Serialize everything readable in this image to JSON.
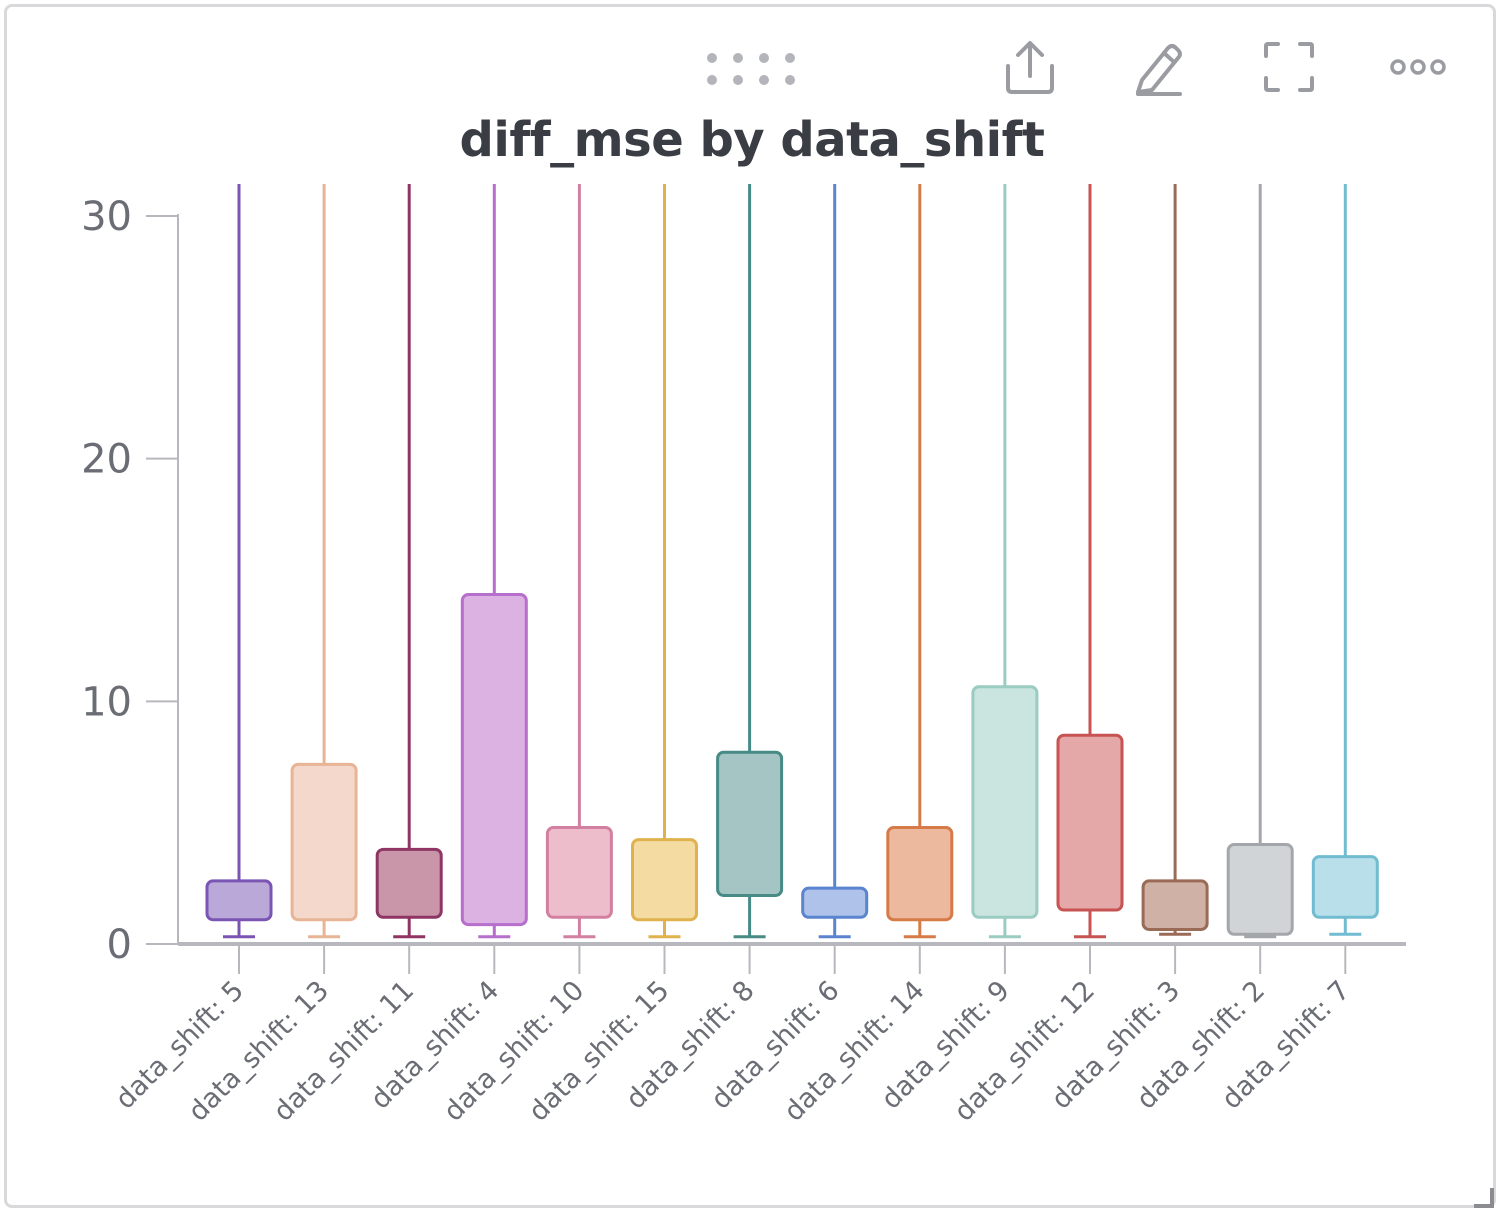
{
  "panel": {
    "title": "diff_mse by data_shift",
    "toolbar": {
      "drag_icon": "drag-handle-icon",
      "share_icon": "share-icon",
      "edit_icon": "edit-pencil-icon",
      "fullscreen_icon": "fullscreen-icon",
      "more_icon": "more-options-icon"
    }
  },
  "chart_data": {
    "type": "box",
    "title": "diff_mse by data_shift",
    "xlabel": "",
    "ylabel": "",
    "ylim": [
      0,
      30
    ],
    "yticks": [
      0,
      10,
      20,
      30
    ],
    "grid": false,
    "categories": [
      "data_shift: 5",
      "data_shift: 13",
      "data_shift: 11",
      "data_shift: 4",
      "data_shift: 10",
      "data_shift: 15",
      "data_shift: 8",
      "data_shift: 6",
      "data_shift: 14",
      "data_shift: 9",
      "data_shift: 12",
      "data_shift: 3",
      "data_shift: 2",
      "data_shift: 7"
    ],
    "boxes": [
      {
        "category": "data_shift: 5",
        "min": 0.3,
        "q1": 1.0,
        "q3": 2.6,
        "max_above_range": true,
        "color": "#7b55b4",
        "fill": "#b9a8d8"
      },
      {
        "category": "data_shift: 13",
        "min": 0.3,
        "q1": 1.0,
        "q3": 7.4,
        "max_above_range": true,
        "color": "#e8b496",
        "fill": "#f4d8cb"
      },
      {
        "category": "data_shift: 11",
        "min": 0.3,
        "q1": 1.1,
        "q3": 3.9,
        "max_above_range": true,
        "color": "#8f3563",
        "fill": "#c995a9"
      },
      {
        "category": "data_shift: 4",
        "min": 0.3,
        "q1": 0.8,
        "q3": 14.4,
        "max_above_range": true,
        "color": "#b66fcc",
        "fill": "#dbb2e2"
      },
      {
        "category": "data_shift: 10",
        "min": 0.3,
        "q1": 1.1,
        "q3": 4.8,
        "max_above_range": true,
        "color": "#d27fa0",
        "fill": "#eebdcc"
      },
      {
        "category": "data_shift: 15",
        "min": 0.3,
        "q1": 1.0,
        "q3": 4.3,
        "max_above_range": true,
        "color": "#e0b24d",
        "fill": "#f3dba2"
      },
      {
        "category": "data_shift: 8",
        "min": 0.3,
        "q1": 2.0,
        "q3": 7.9,
        "max_above_range": true,
        "color": "#478a86",
        "fill": "#a4c5c3"
      },
      {
        "category": "data_shift: 6",
        "min": 0.3,
        "q1": 1.1,
        "q3": 2.3,
        "max_above_range": true,
        "color": "#5b84cf",
        "fill": "#aec2ea"
      },
      {
        "category": "data_shift: 14",
        "min": 0.3,
        "q1": 1.0,
        "q3": 4.8,
        "max_above_range": true,
        "color": "#d67a47",
        "fill": "#ecb99e"
      },
      {
        "category": "data_shift: 9",
        "min": 0.3,
        "q1": 1.1,
        "q3": 10.6,
        "max_above_range": true,
        "color": "#9accc1",
        "fill": "#cae5df"
      },
      {
        "category": "data_shift: 12",
        "min": 0.3,
        "q1": 1.4,
        "q3": 8.6,
        "max_above_range": true,
        "color": "#c75353",
        "fill": "#e4a8a8"
      },
      {
        "category": "data_shift: 3",
        "min": 0.4,
        "q1": 0.6,
        "q3": 2.6,
        "max_above_range": true,
        "color": "#9a6b57",
        "fill": "#cfb1a5"
      },
      {
        "category": "data_shift: 2",
        "min": 0.3,
        "q1": 0.4,
        "q3": 4.1,
        "max_above_range": true,
        "color": "#a3a6ab",
        "fill": "#d1d4d7"
      },
      {
        "category": "data_shift: 7",
        "min": 0.4,
        "q1": 1.1,
        "q3": 3.6,
        "max_above_range": true,
        "color": "#72bcd2",
        "fill": "#b9dfea"
      }
    ]
  }
}
